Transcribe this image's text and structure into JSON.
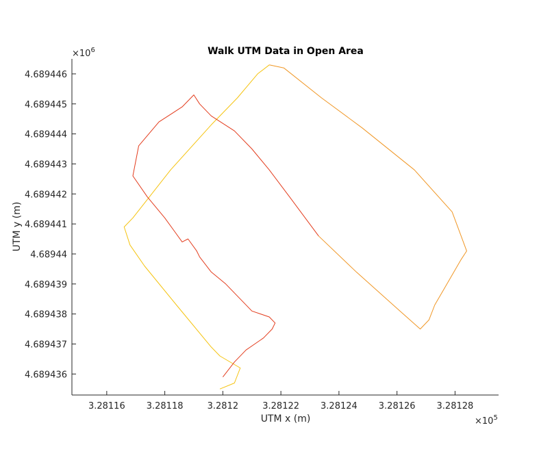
{
  "chart_data": {
    "type": "line",
    "title": "Walk UTM Data in Open Area",
    "xlabel": "UTM x (m)",
    "ylabel": "UTM y (m)",
    "x_exponent_label": "×10",
    "x_exponent_power": "5",
    "y_exponent_label": "×10",
    "y_exponent_power": "6",
    "xlim": [
      328114.8,
      328129.5
    ],
    "ylim": [
      4689435.3,
      4689446.5
    ],
    "x_ticks": [
      328116,
      328118,
      328120,
      328122,
      328124,
      328126,
      328128
    ],
    "x_tick_labels": [
      "3.28116",
      "3.28118",
      "3.2812",
      "3.28122",
      "3.28124",
      "3.28126",
      "3.28128"
    ],
    "y_ticks": [
      4689436,
      4689437,
      4689438,
      4689439,
      4689440,
      4689441,
      4689442,
      4689443,
      4689444,
      4689445,
      4689446
    ],
    "y_tick_labels": [
      "4.689436",
      "4.689437",
      "4.689438",
      "4.689439",
      "4.68944",
      "4.689441",
      "4.689442",
      "4.689443",
      "4.689444",
      "4.689445",
      "4.689446"
    ],
    "grid": false,
    "series": [
      {
        "color": "#f5c30f",
        "x": [
          328119.9,
          328120.4,
          328120.6,
          328119.9,
          328119.6,
          328118.4,
          328117.3,
          328116.8,
          328116.6,
          328116.9,
          328118.2,
          328119.6,
          328120.5,
          328121.2,
          328121.6
        ],
        "y": [
          4689435.5,
          4689435.7,
          4689436.2,
          4689436.6,
          4689436.9,
          4689438.3,
          4689439.6,
          4689440.3,
          4689440.9,
          4689441.2,
          4689442.8,
          4689444.3,
          4689445.2,
          4689446.0,
          4689446.3
        ]
      },
      {
        "color": "#f09624",
        "x": [
          328121.6,
          328122.1,
          328123.4,
          328124.8,
          328126.6,
          328127.9,
          328128.4,
          328128.2,
          328127.6,
          328127.3,
          328127.1,
          328126.8,
          328126.1,
          328124.6,
          328123.3
        ],
        "y": [
          4689446.3,
          4689446.2,
          4689445.2,
          4689444.2,
          4689442.8,
          4689441.4,
          4689440.1,
          4689439.8,
          4689438.8,
          4689438.3,
          4689437.8,
          4689437.5,
          4689438.1,
          4689439.4,
          4689440.6
        ]
      },
      {
        "color": "#e33c1d",
        "x": [
          328123.3,
          328122.3,
          328121.6,
          328121.0,
          328120.4,
          328119.6,
          328119.2,
          328119.0,
          328118.6,
          328117.8,
          328117.1,
          328116.9,
          328117.4,
          328118.0,
          328118.6,
          328118.8,
          328119.1,
          328119.2,
          328119.6,
          328120.1,
          328121.0,
          328121.6,
          328121.8,
          328121.7,
          328121.4,
          328120.8,
          328120.4,
          328120.0
        ],
        "y": [
          4689440.6,
          4689441.9,
          4689442.8,
          4689443.5,
          4689444.1,
          4689444.6,
          4689445.0,
          4689445.3,
          4689444.9,
          4689444.4,
          4689443.6,
          4689442.6,
          4689441.9,
          4689441.2,
          4689440.4,
          4689440.5,
          4689440.1,
          4689439.9,
          4689439.4,
          4689439.0,
          4689438.1,
          4689437.9,
          4689437.7,
          4689437.5,
          4689437.2,
          4689436.8,
          4689436.4,
          4689435.9
        ]
      }
    ]
  }
}
